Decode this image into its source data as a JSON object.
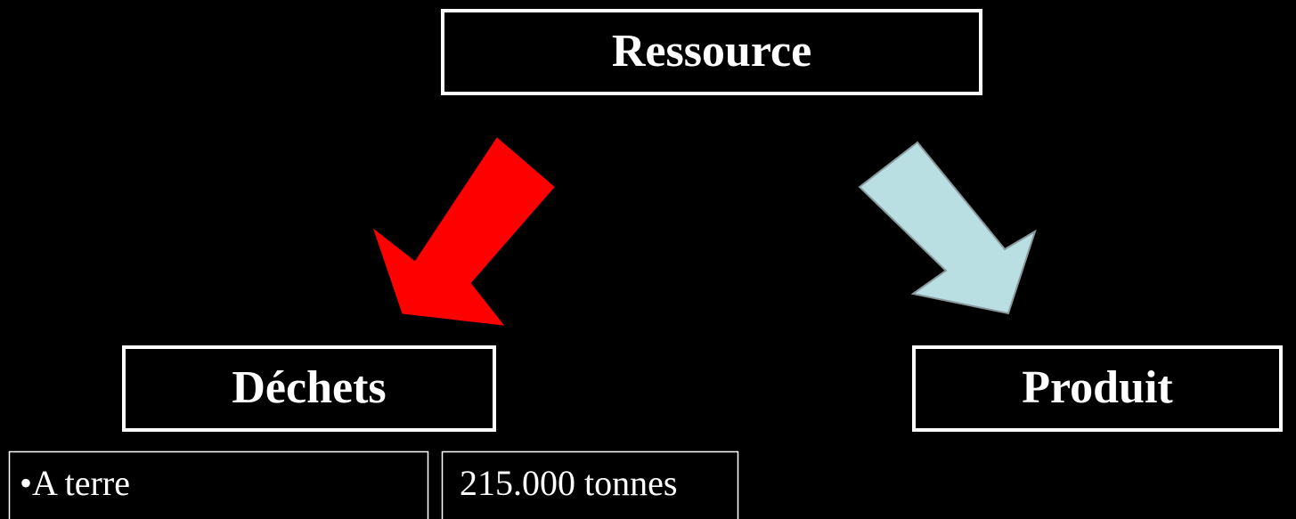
{
  "nodes": [
    {
      "label": "Ressource"
    },
    {
      "label": "Déchets"
    },
    {
      "label": "Produit"
    }
  ],
  "details": [
    {
      "text": "•A terre"
    },
    {
      "text": "215.000 tonnes"
    }
  ]
}
